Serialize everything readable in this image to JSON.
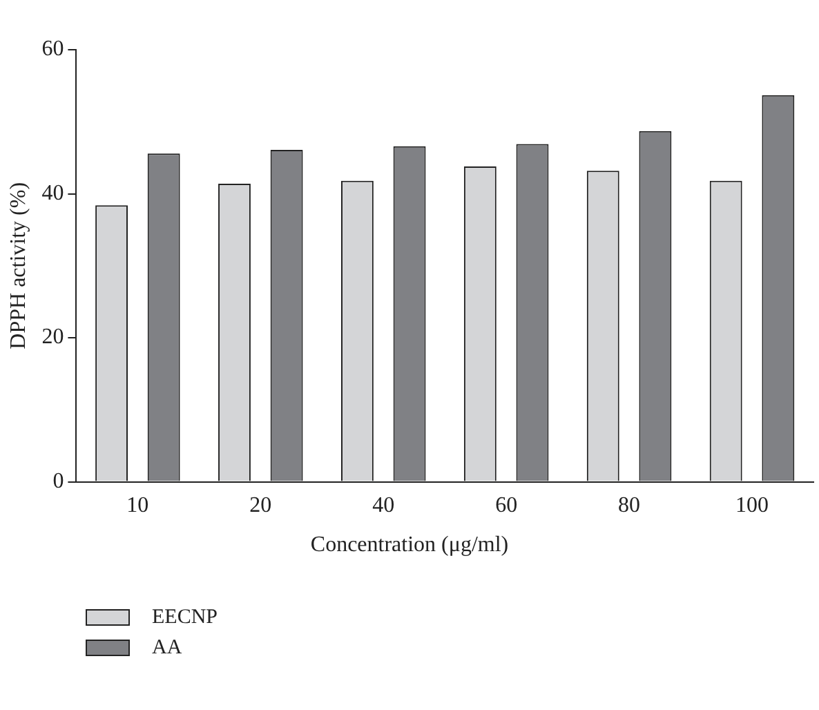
{
  "chart_data": {
    "type": "bar",
    "xlabel": "Concentration (μg/ml)",
    "ylabel": "DPPH activity (%)",
    "categories": [
      "10",
      "20",
      "40",
      "60",
      "80",
      "100"
    ],
    "series": [
      {
        "name": "EECNP",
        "color": "#d4d5d7",
        "values": [
          38.4,
          41.4,
          41.8,
          43.8,
          43.2,
          41.8
        ]
      },
      {
        "name": "AA",
        "color": "#808185",
        "values": [
          45.6,
          46.1,
          46.6,
          46.9,
          48.7,
          53.7
        ]
      }
    ],
    "ylim": [
      0,
      60
    ],
    "yticks": [
      0,
      20,
      40,
      60
    ],
    "grid": false,
    "legend": "bottom left"
  }
}
